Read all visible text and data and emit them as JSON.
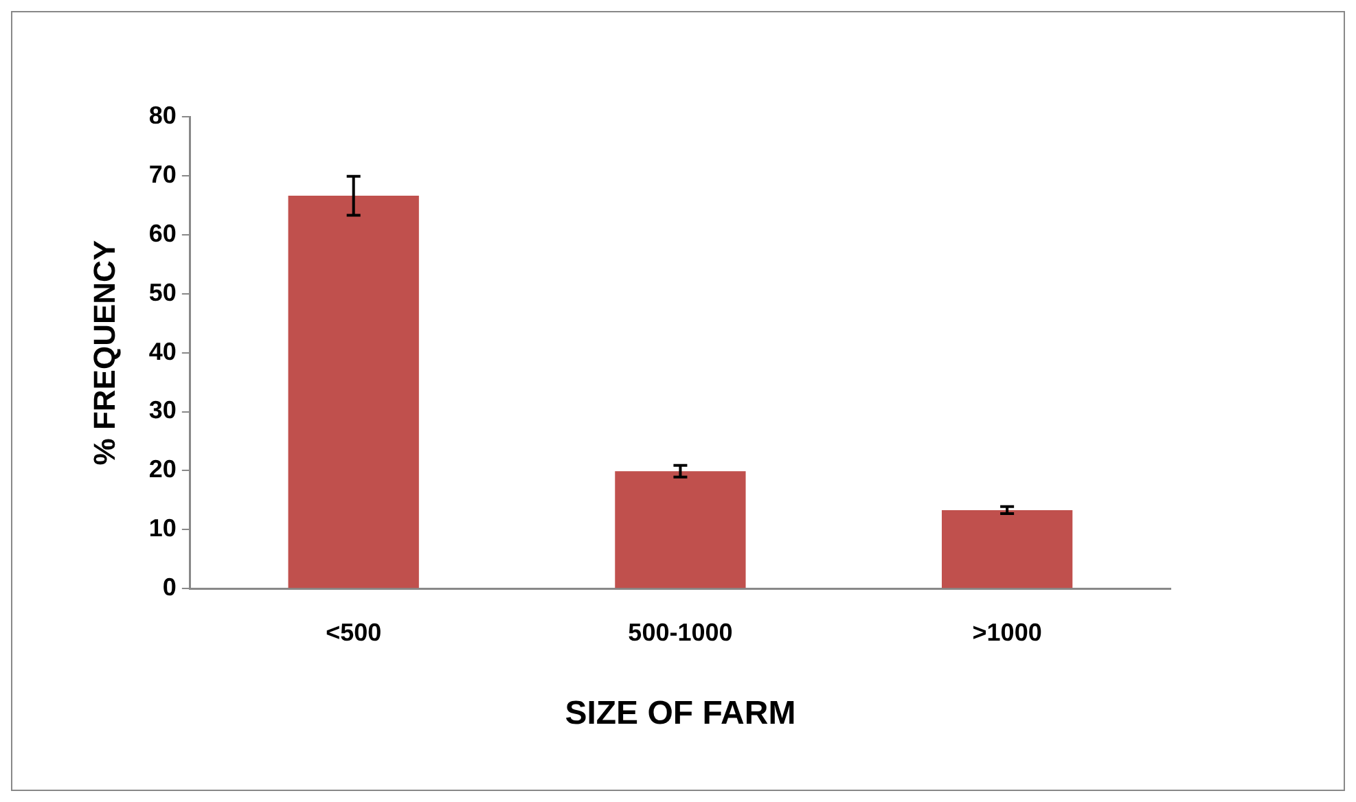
{
  "chart_data": {
    "type": "bar",
    "xlabel": "SIZE OF FARM",
    "ylabel": "% FREQUENCY",
    "categories": [
      "<500",
      "500-1000",
      ">1000"
    ],
    "values": [
      66.6,
      19.9,
      13.3
    ],
    "errors": [
      3.3,
      1.0,
      0.6
    ],
    "color": "#c0504d",
    "ylim": [
      0,
      80
    ],
    "yticks": [
      0,
      10,
      20,
      30,
      40,
      50,
      60,
      70,
      80
    ],
    "grid": false,
    "legend": false
  }
}
